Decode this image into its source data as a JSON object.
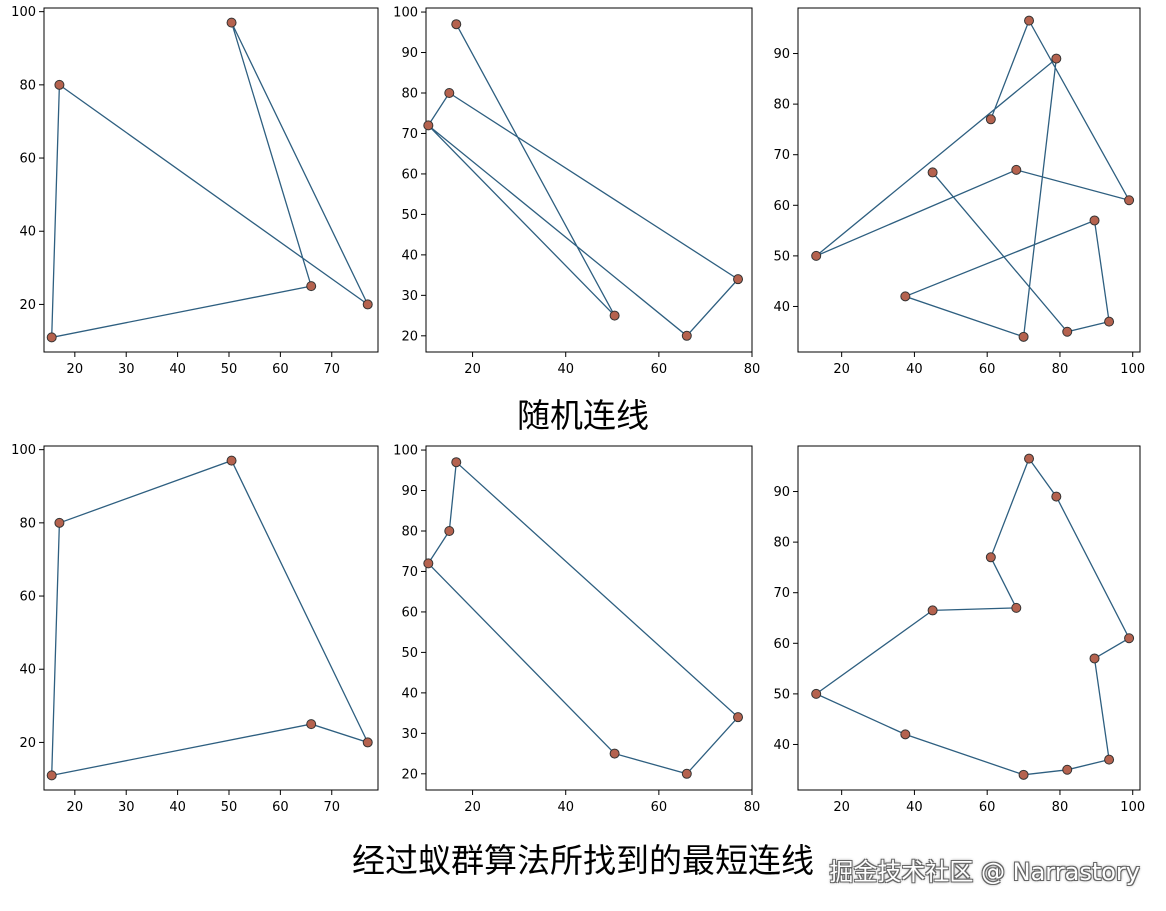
{
  "captions": {
    "top": "随机连线",
    "bottom": "经过蚁群算法所找到的最短连线"
  },
  "watermark": "掘金技术社区 @ Narrastory",
  "colors": {
    "line": "#2e5f80",
    "marker_fill": "#b5624e",
    "marker_edge": "#333333"
  },
  "chart_data": [
    {
      "type": "line",
      "group": "random",
      "xlim": [
        14,
        79
      ],
      "ylim": [
        7,
        101
      ],
      "xticks": [
        20,
        30,
        40,
        50,
        60,
        70
      ],
      "yticks": [
        20,
        40,
        60,
        80,
        100
      ],
      "points": [
        [
          17,
          80
        ],
        [
          77,
          20
        ],
        [
          50.5,
          97
        ],
        [
          66,
          25
        ],
        [
          15.5,
          11
        ],
        [
          17,
          80
        ]
      ]
    },
    {
      "type": "line",
      "group": "random",
      "xlim": [
        10,
        80
      ],
      "ylim": [
        16,
        101
      ],
      "xticks": [
        20,
        40,
        60,
        80
      ],
      "yticks": [
        20,
        30,
        40,
        50,
        60,
        70,
        80,
        90,
        100
      ],
      "points": [
        [
          16.5,
          97
        ],
        [
          50.5,
          25
        ],
        [
          10.5,
          72
        ],
        [
          66,
          20
        ],
        [
          77,
          34
        ],
        [
          15,
          80
        ],
        [
          10.5,
          72
        ]
      ]
    },
    {
      "type": "line",
      "group": "random",
      "xlim": [
        8,
        102
      ],
      "ylim": [
        31,
        99
      ],
      "xticks": [
        20,
        40,
        60,
        80,
        100
      ],
      "yticks": [
        40,
        50,
        60,
        70,
        80,
        90
      ],
      "points": [
        [
          61,
          77
        ],
        [
          71.5,
          96.5
        ],
        [
          99,
          61
        ],
        [
          68,
          67
        ],
        [
          13,
          50
        ],
        [
          79,
          89
        ],
        [
          70,
          34
        ],
        [
          37.5,
          42
        ],
        [
          89.5,
          57
        ],
        [
          93.5,
          37
        ],
        [
          82,
          35
        ],
        [
          45,
          66.5
        ]
      ]
    },
    {
      "type": "line",
      "group": "shortest",
      "xlim": [
        14,
        79
      ],
      "ylim": [
        7,
        101
      ],
      "xticks": [
        20,
        30,
        40,
        50,
        60,
        70
      ],
      "yticks": [
        20,
        40,
        60,
        80,
        100
      ],
      "points": [
        [
          15.5,
          11
        ],
        [
          66,
          25
        ],
        [
          77,
          20
        ],
        [
          50.5,
          97
        ],
        [
          17,
          80
        ],
        [
          15.5,
          11
        ]
      ]
    },
    {
      "type": "line",
      "group": "shortest",
      "xlim": [
        10,
        80
      ],
      "ylim": [
        16,
        101
      ],
      "xticks": [
        20,
        40,
        60,
        80
      ],
      "yticks": [
        20,
        30,
        40,
        50,
        60,
        70,
        80,
        90,
        100
      ],
      "points": [
        [
          16.5,
          97
        ],
        [
          15,
          80
        ],
        [
          10.5,
          72
        ],
        [
          50.5,
          25
        ],
        [
          66,
          20
        ],
        [
          77,
          34
        ],
        [
          16.5,
          97
        ]
      ]
    },
    {
      "type": "line",
      "group": "shortest",
      "xlim": [
        8,
        102
      ],
      "ylim": [
        31,
        99
      ],
      "xticks": [
        20,
        40,
        60,
        80,
        100
      ],
      "yticks": [
        40,
        50,
        60,
        70,
        80,
        90
      ],
      "points": [
        [
          71.5,
          96.5
        ],
        [
          79,
          89
        ],
        [
          99,
          61
        ],
        [
          89.5,
          57
        ],
        [
          93.5,
          37
        ],
        [
          82,
          35
        ],
        [
          70,
          34
        ],
        [
          37.5,
          42
        ],
        [
          13,
          50
        ],
        [
          45,
          66.5
        ],
        [
          68,
          67
        ],
        [
          61,
          77
        ],
        [
          71.5,
          96.5
        ]
      ]
    }
  ]
}
